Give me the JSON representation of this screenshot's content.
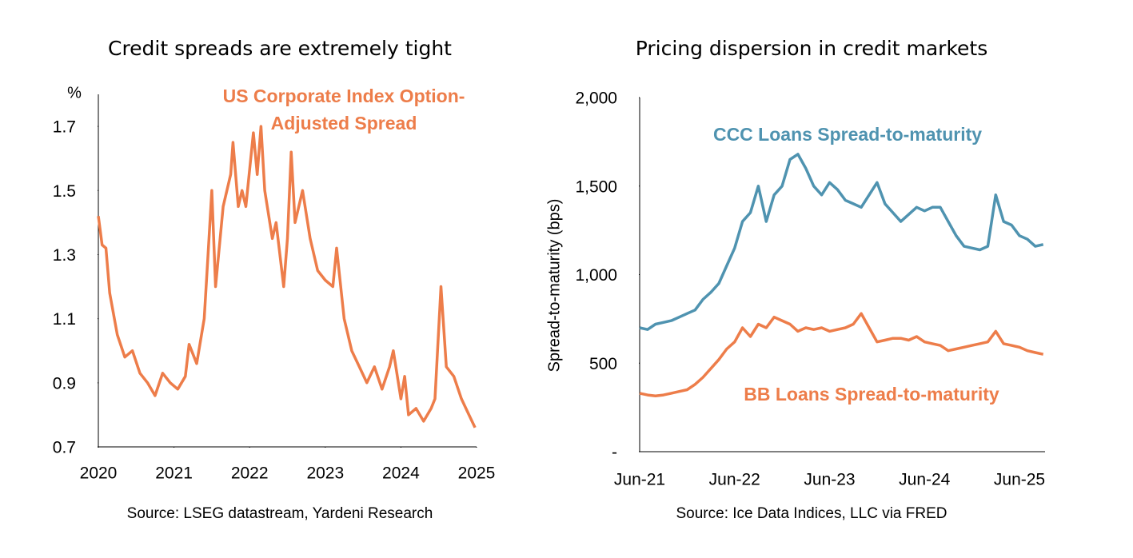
{
  "chart_data": [
    {
      "type": "line",
      "title": "Credit spreads are extremely tight",
      "y_label": "%",
      "source": "Source: LSEG datastream, Yardeni Research",
      "x": [
        2020.0,
        2020.05,
        2020.1,
        2020.15,
        2020.25,
        2020.35,
        2020.45,
        2020.55,
        2020.65,
        2020.75,
        2020.85,
        2020.95,
        2021.05,
        2021.15,
        2021.2,
        2021.3,
        2021.4,
        2021.45,
        2021.5,
        2021.55,
        2021.65,
        2021.75,
        2021.78,
        2021.85,
        2021.9,
        2021.95,
        2022.05,
        2022.1,
        2022.15,
        2022.2,
        2022.3,
        2022.35,
        2022.45,
        2022.5,
        2022.55,
        2022.6,
        2022.7,
        2022.8,
        2022.9,
        2023.0,
        2023.1,
        2023.15,
        2023.25,
        2023.35,
        2023.45,
        2023.55,
        2023.65,
        2023.75,
        2023.85,
        2023.9,
        2024.0,
        2024.05,
        2024.1,
        2024.2,
        2024.3,
        2024.4,
        2024.45,
        2024.53,
        2024.6,
        2024.7,
        2024.8,
        2024.9,
        2024.98
      ],
      "series": [
        {
          "name": "US Corporate Index Option-Adjusted Spread",
          "color": "#ed7d4a",
          "values": [
            1.42,
            1.33,
            1.32,
            1.18,
            1.05,
            0.98,
            1.0,
            0.93,
            0.9,
            0.86,
            0.93,
            0.9,
            0.88,
            0.92,
            1.02,
            0.96,
            1.1,
            1.3,
            1.5,
            1.2,
            1.45,
            1.55,
            1.65,
            1.45,
            1.5,
            1.45,
            1.68,
            1.55,
            1.7,
            1.5,
            1.35,
            1.4,
            1.2,
            1.35,
            1.62,
            1.4,
            1.5,
            1.35,
            1.25,
            1.22,
            1.2,
            1.32,
            1.1,
            1.0,
            0.95,
            0.9,
            0.95,
            0.88,
            0.95,
            1.0,
            0.85,
            0.92,
            0.8,
            0.82,
            0.78,
            0.82,
            0.85,
            1.2,
            0.95,
            0.92,
            0.85,
            0.8,
            0.76
          ]
        }
      ],
      "xlim": [
        2020,
        2025
      ],
      "xticks": [
        2020,
        2021,
        2022,
        2023,
        2024,
        2025
      ],
      "ylim": [
        0.7,
        1.8
      ],
      "yticks": [
        0.7,
        0.9,
        1.1,
        1.3,
        1.5,
        1.7
      ]
    },
    {
      "type": "line",
      "title": "Pricing dispersion in credit markets",
      "y_label": "Spread-to-maturity (bps)",
      "source": "Source: Ice Data Indices, LLC via FRED",
      "categories": [
        "Jun-21",
        null,
        null,
        null,
        null,
        null,
        null,
        null,
        null,
        null,
        null,
        null,
        "Jun-22",
        null,
        null,
        null,
        null,
        null,
        null,
        null,
        null,
        null,
        null,
        null,
        "Jun-23",
        null,
        null,
        null,
        null,
        null,
        null,
        null,
        null,
        null,
        null,
        null,
        "Jun-24",
        null,
        null,
        null,
        null,
        null,
        null,
        null,
        null,
        null,
        null,
        null,
        "Jun-25",
        null,
        null,
        null
      ],
      "series": [
        {
          "name": "CCC Loans Spread-to-maturity",
          "color": "#4f93b0",
          "values": [
            700,
            690,
            720,
            730,
            740,
            760,
            780,
            800,
            860,
            900,
            950,
            1050,
            1150,
            1300,
            1350,
            1500,
            1300,
            1450,
            1500,
            1650,
            1680,
            1600,
            1500,
            1450,
            1520,
            1480,
            1420,
            1400,
            1380,
            1450,
            1520,
            1400,
            1350,
            1300,
            1340,
            1380,
            1360,
            1380,
            1380,
            1300,
            1220,
            1160,
            1150,
            1140,
            1160,
            1450,
            1300,
            1280,
            1220,
            1200,
            1160,
            1170
          ]
        },
        {
          "name": "BB Loans Spread-to-maturity",
          "color": "#ed7d4a",
          "values": [
            330,
            320,
            315,
            320,
            330,
            340,
            350,
            380,
            420,
            470,
            520,
            580,
            620,
            700,
            650,
            720,
            700,
            760,
            740,
            720,
            680,
            700,
            690,
            700,
            680,
            690,
            700,
            720,
            780,
            700,
            620,
            630,
            640,
            640,
            630,
            650,
            620,
            610,
            600,
            570,
            580,
            590,
            600,
            610,
            620,
            680,
            610,
            600,
            590,
            570,
            560,
            550
          ]
        }
      ],
      "ylim": [
        0,
        2000
      ],
      "yticks": [
        {
          "value": 0,
          "label": "-"
        },
        500,
        {
          "value": 1000,
          "label": "1,000"
        },
        {
          "value": 1500,
          "label": "1,500"
        },
        {
          "value": 2000,
          "label": "2,000"
        }
      ]
    }
  ]
}
